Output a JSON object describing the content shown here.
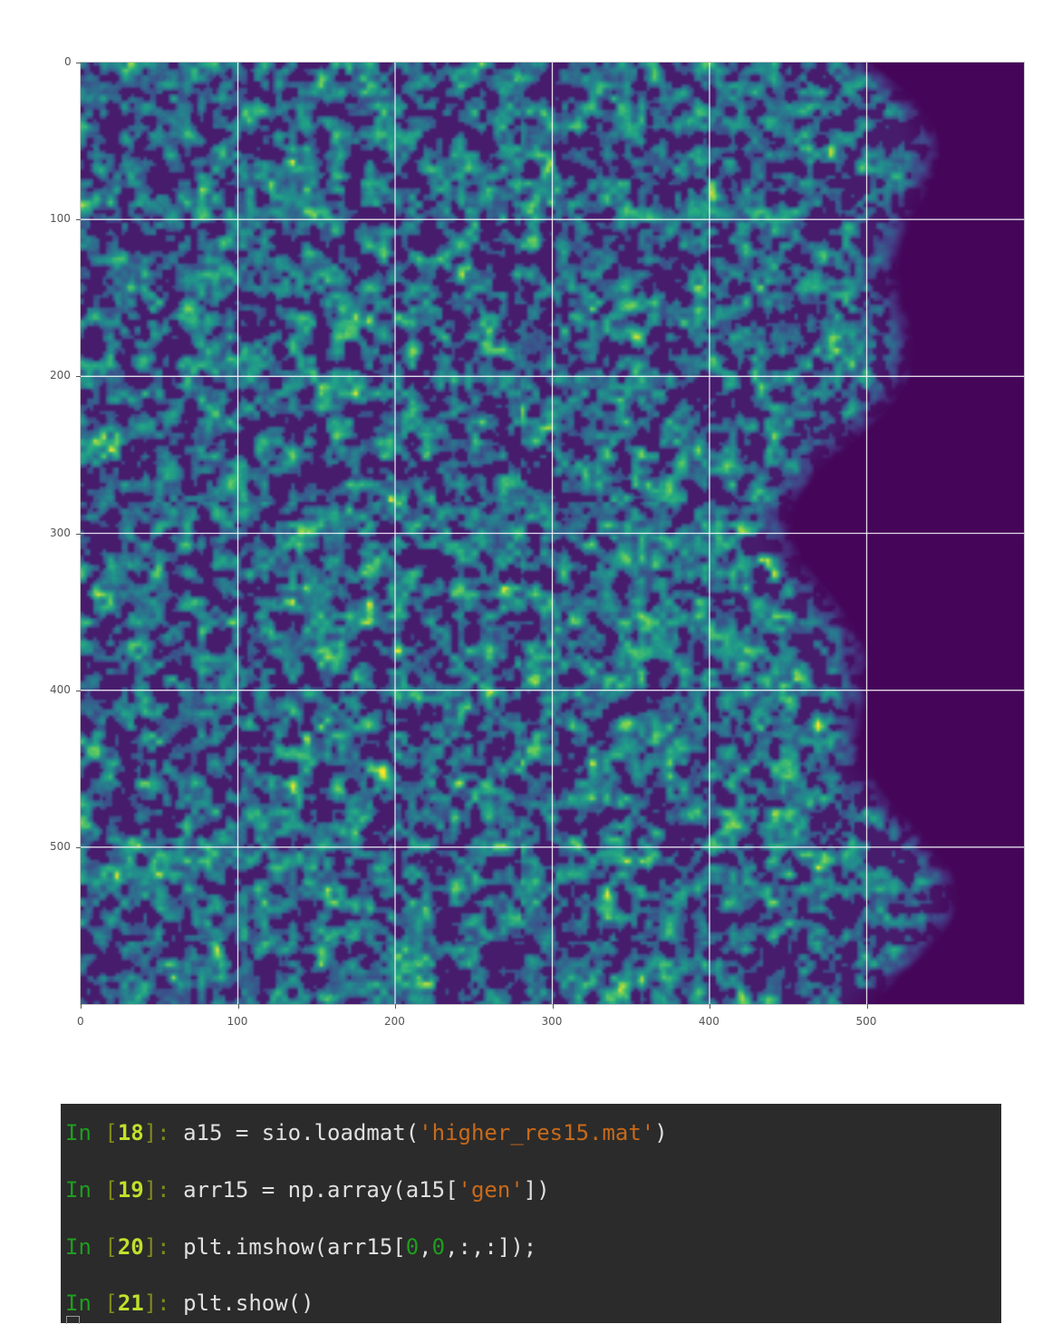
{
  "chart_data": {
    "type": "heatmap",
    "colormap": "viridis",
    "image_shape": [
      600,
      600
    ],
    "xlim": [
      0,
      600
    ],
    "ylim": [
      600,
      0
    ],
    "xticks": [
      "0",
      "100",
      "200",
      "300",
      "400",
      "500"
    ],
    "yticks": [
      "0",
      "100",
      "200",
      "300",
      "400",
      "500"
    ],
    "grid": true,
    "xlabel": "",
    "ylabel": "",
    "title": ""
  },
  "console": {
    "lines": [
      {
        "in": "In ",
        "open": "[",
        "num": "18",
        "close": "]: ",
        "parts": [
          {
            "t": "code",
            "v": "a15 = sio.loadmat("
          },
          {
            "t": "str",
            "v": "'higher_res15.mat'"
          },
          {
            "t": "code",
            "v": ")"
          }
        ]
      },
      {
        "in": "In ",
        "open": "[",
        "num": "19",
        "close": "]: ",
        "parts": [
          {
            "t": "code",
            "v": "arr15 = np.array(a15["
          },
          {
            "t": "str",
            "v": "'gen'"
          },
          {
            "t": "code",
            "v": "])"
          }
        ]
      },
      {
        "in": "In ",
        "open": "[",
        "num": "20",
        "close": "]: ",
        "parts": [
          {
            "t": "code",
            "v": "plt.imshow(arr15["
          },
          {
            "t": "num",
            "v": "0"
          },
          {
            "t": "code",
            "v": ","
          },
          {
            "t": "num",
            "v": "0"
          },
          {
            "t": "code",
            "v": ",:,:]);"
          }
        ]
      },
      {
        "in": "In ",
        "open": "[",
        "num": "21",
        "close": "]: ",
        "parts": [
          {
            "t": "code",
            "v": "plt.show()"
          }
        ]
      }
    ]
  },
  "colors": {
    "console_bg": "#2b2b2b",
    "prompt_in": "#1e9e1e",
    "prompt_num": "#bfe02b",
    "string": "#c76a1b"
  }
}
